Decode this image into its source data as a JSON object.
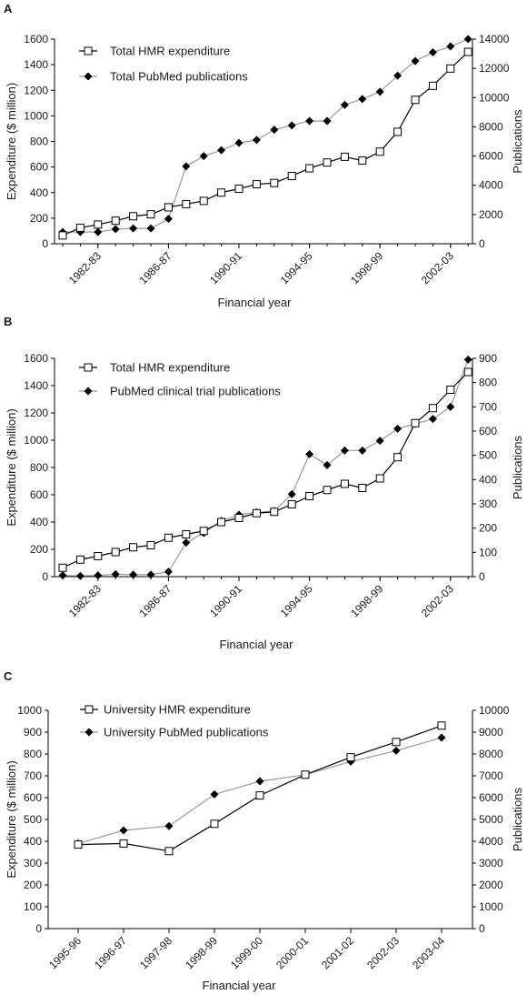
{
  "chart_data": [
    {
      "type": "line",
      "panel": "A",
      "xlabel": "Financial year",
      "ylabel": "Expenditure ($ million)",
      "y2label": "Publications",
      "ylim": [
        0,
        1600
      ],
      "y2lim": [
        0,
        14000
      ],
      "yticks": [
        0,
        200,
        400,
        600,
        800,
        1000,
        1200,
        1400,
        1600
      ],
      "y2ticks": [
        0,
        2000,
        4000,
        6000,
        8000,
        10000,
        12000,
        14000
      ],
      "x": [
        "1980-81",
        "1981-82",
        "1982-83",
        "1983-84",
        "1984-85",
        "1985-86",
        "1986-87",
        "1987-88",
        "1988-89",
        "1989-90",
        "1990-91",
        "1991-92",
        "1992-93",
        "1993-94",
        "1994-95",
        "1995-96",
        "1996-97",
        "1997-98",
        "1998-99",
        "1999-00",
        "2000-01",
        "2001-02",
        "2002-03",
        "2003-04"
      ],
      "xtick_labels": [
        "1982-83",
        "1986-87",
        "1990-91",
        "1994-95",
        "1998-99",
        "2002-03"
      ],
      "legend_position": "top-left",
      "series": [
        {
          "name": "Total HMR expenditure",
          "axis": "left",
          "marker": "open-square",
          "color": "#000000",
          "values": [
            65,
            125,
            150,
            180,
            215,
            230,
            285,
            310,
            335,
            400,
            430,
            465,
            475,
            530,
            590,
            635,
            680,
            650,
            720,
            875,
            1125,
            1235,
            1370,
            1500
          ]
        },
        {
          "name": "Total PubMed publications",
          "axis": "right",
          "marker": "filled-diamond",
          "color": "#999999",
          "values": [
            800,
            800,
            800,
            1000,
            1050,
            1050,
            1700,
            5300,
            6000,
            6400,
            6900,
            7100,
            7800,
            8100,
            8400,
            8400,
            9500,
            9900,
            10400,
            11500,
            12500,
            13100,
            13500,
            14000
          ]
        }
      ]
    },
    {
      "type": "line",
      "panel": "B",
      "xlabel": "Financial year",
      "ylabel": "Expenditure ($ million)",
      "y2label": "Publications",
      "ylim": [
        0,
        1600
      ],
      "y2lim": [
        0,
        900
      ],
      "yticks": [
        0,
        200,
        400,
        600,
        800,
        1000,
        1200,
        1400,
        1600
      ],
      "y2ticks": [
        0,
        100,
        200,
        300,
        400,
        500,
        600,
        700,
        800,
        900
      ],
      "x": [
        "1980-81",
        "1981-82",
        "1982-83",
        "1983-84",
        "1984-85",
        "1985-86",
        "1986-87",
        "1987-88",
        "1988-89",
        "1989-90",
        "1990-91",
        "1991-92",
        "1992-93",
        "1993-94",
        "1994-95",
        "1995-96",
        "1996-97",
        "1997-98",
        "1998-99",
        "1999-00",
        "2000-01",
        "2001-02",
        "2002-03",
        "2003-04"
      ],
      "xtick_labels": [
        "1982-83",
        "1986-87",
        "1990-91",
        "1994-95",
        "1998-99",
        "2002-03"
      ],
      "legend_position": "top-left",
      "series": [
        {
          "name": "Total HMR expenditure",
          "axis": "left",
          "marker": "open-square",
          "color": "#000000",
          "values": [
            65,
            125,
            150,
            180,
            215,
            230,
            285,
            310,
            335,
            400,
            430,
            465,
            475,
            530,
            590,
            635,
            680,
            650,
            720,
            875,
            1125,
            1235,
            1370,
            1500
          ]
        },
        {
          "name": "PubMed clinical trial publications",
          "axis": "right",
          "marker": "filled-diamond",
          "color": "#999999",
          "values": [
            5,
            3,
            5,
            10,
            8,
            8,
            20,
            140,
            180,
            230,
            255,
            265,
            270,
            340,
            505,
            460,
            520,
            520,
            560,
            610,
            630,
            650,
            700,
            895
          ]
        }
      ]
    },
    {
      "type": "line",
      "panel": "C",
      "xlabel": "Financial year",
      "ylabel": "Expenditure ($ million)",
      "y2label": "Publications",
      "ylim": [
        0,
        1000
      ],
      "y2lim": [
        0,
        10000
      ],
      "yticks": [
        0,
        100,
        200,
        300,
        400,
        500,
        600,
        700,
        800,
        900,
        1000
      ],
      "y2ticks": [
        0,
        1000,
        2000,
        3000,
        4000,
        5000,
        6000,
        7000,
        8000,
        9000,
        10000
      ],
      "x": [
        "1995-96",
        "1996-97",
        "1997-98",
        "1998-99",
        "1999-00",
        "2000-01",
        "2001-02",
        "2002-03",
        "2003-04"
      ],
      "xtick_labels": [
        "1995-96",
        "1996-97",
        "1997-98",
        "1998-99",
        "1999-00",
        "2000-01",
        "2001-02",
        "2002-03",
        "2003-04"
      ],
      "legend_position": "top-left",
      "series": [
        {
          "name": "University HMR expenditure",
          "axis": "left",
          "marker": "open-square",
          "color": "#000000",
          "values": [
            385,
            390,
            355,
            480,
            610,
            705,
            785,
            855,
            930
          ]
        },
        {
          "name": "University PubMed publications",
          "axis": "right",
          "marker": "filled-diamond",
          "color": "#999999",
          "values": [
            3900,
            4500,
            4700,
            6150,
            6750,
            7050,
            7650,
            8150,
            8750
          ]
        }
      ]
    }
  ]
}
